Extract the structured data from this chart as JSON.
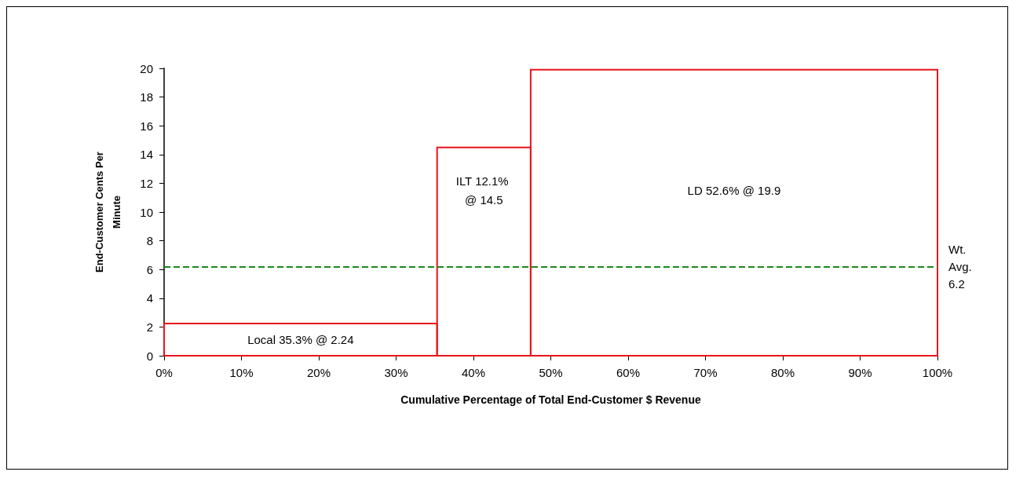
{
  "chart_data": {
    "type": "histogram",
    "bins": [
      0,
      35.3,
      47.4,
      100
    ],
    "values": [
      2.24,
      14.5,
      19.9
    ],
    "color": "#e8141b",
    "value_labels": [
      "Local 35.3% @ 2.24",
      "ILT 12.1% @ 14.5",
      "LD 52.6% @ 19.9"
    ],
    "xlabel": "Cumulative Percentage of Total End-Customer $ Revenue",
    "ylabel": "End-Customer Cents Per Minute",
    "xlim": [
      0,
      100
    ],
    "xticks": [
      {
        "value": 0,
        "label": "0%"
      },
      {
        "value": 10,
        "label": "10%"
      },
      {
        "value": 20,
        "label": "20%"
      },
      {
        "value": 30,
        "label": "30%"
      },
      {
        "value": 40,
        "label": "40%"
      },
      {
        "value": 50,
        "label": "50%"
      },
      {
        "value": 60,
        "label": "60%"
      },
      {
        "value": 70,
        "label": "70%"
      },
      {
        "value": 80,
        "label": "80%"
      },
      {
        "value": 90,
        "label": "90%"
      },
      {
        "value": 100,
        "label": "100%"
      }
    ],
    "ylim": [
      0,
      20
    ],
    "yticks": [
      0,
      2,
      4,
      6,
      8,
      10,
      12,
      14,
      16,
      18,
      20
    ],
    "ref_lines": [
      {
        "axis": "y",
        "value": 6.2,
        "label": "Wt. Avg. 6.2",
        "color": "#1a8a1a",
        "line_style": "dashed"
      }
    ],
    "grid": false
  }
}
